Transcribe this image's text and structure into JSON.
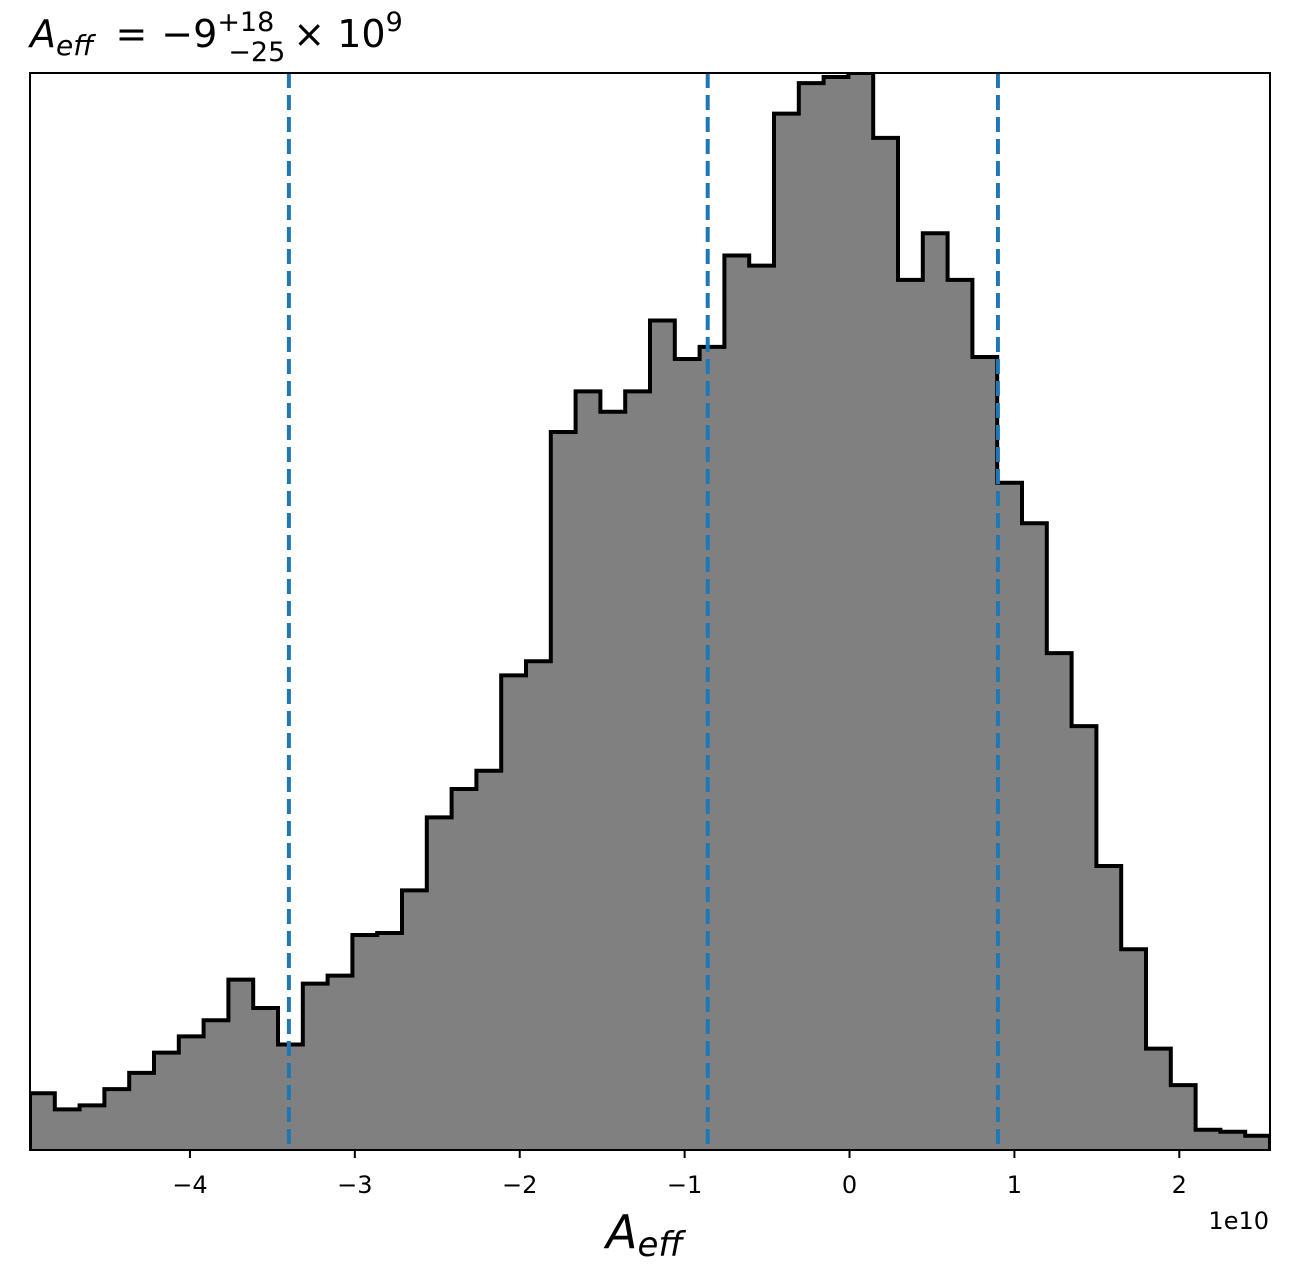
{
  "chart_data": {
    "type": "histogram",
    "title": {
      "symbol": "A",
      "symbol_sub": "eff",
      "equals": "=",
      "value": "−9",
      "sup": "+18",
      "sub": "−25",
      "times": "× 10",
      "exponent": "9"
    },
    "xlabel": {
      "symbol": "A",
      "sub": "eff"
    },
    "x_offset_label": "1e10",
    "xlim": [
      -4.97,
      2.55
    ],
    "xticks": [
      -4,
      -3,
      -2,
      -1,
      0,
      1,
      2
    ],
    "xtick_labels": [
      "−4",
      "−3",
      "−2",
      "−1",
      "0",
      "1",
      "2"
    ],
    "y_ticks_shown": false,
    "bin_edges_start": -4.97,
    "bin_width": 0.1504,
    "counts": [
      56,
      40,
      44,
      60,
      76,
      96,
      112,
      128,
      168,
      140,
      104,
      164,
      172,
      212,
      214,
      256,
      328,
      356,
      374,
      468,
      482,
      708,
      748,
      728,
      748,
      818,
      780,
      792,
      882,
      872,
      1022,
      1052,
      1058,
      1062,
      998,
      858,
      904,
      858,
      782,
      658,
      618,
      490,
      418,
      280,
      198,
      100,
      64,
      20,
      18,
      14,
      2,
      6,
      4
    ],
    "ylim": [
      0,
      1062
    ],
    "fill_color": "#808080",
    "edge_color": "#000000",
    "vlines": {
      "values": [
        -3.4,
        -0.86,
        0.9
      ],
      "color": "#1f77b4",
      "style": "dashed"
    }
  }
}
